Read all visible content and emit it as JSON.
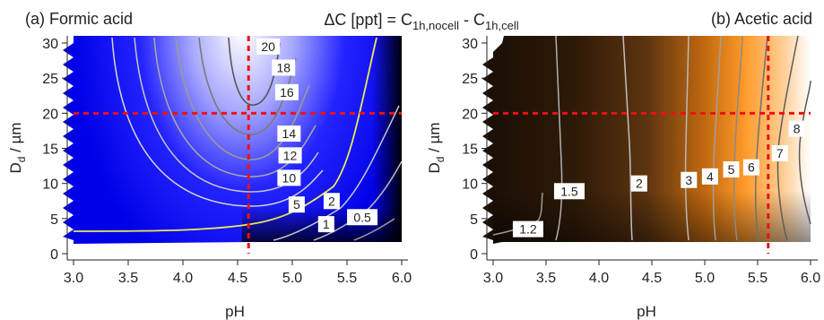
{
  "figure_title": "ΔC [ppt] = C1h,nocell - C1h,cell",
  "title_parts": {
    "pre": "ΔC [ppt] = C",
    "sub1": "1h,nocell",
    "mid": " - C",
    "sub2": "1h,cell"
  },
  "chart_data": [
    {
      "type": "contour",
      "title": "(a) Formic acid",
      "xlabel": "pH",
      "ylabel_main": "D",
      "ylabel_sub": "d",
      "ylabel_unit": " / µm",
      "xlim": [
        2.95,
        6.05
      ],
      "ylim": [
        -1,
        31
      ],
      "xticks": [
        3.0,
        3.5,
        4.0,
        4.5,
        5.0,
        5.5,
        6.0
      ],
      "xtick_labels": [
        "3.0",
        "3.5",
        "4.0",
        "4.5",
        "5.0",
        "5.5",
        "6.0"
      ],
      "yticks": [
        0,
        5,
        10,
        15,
        20,
        25,
        30
      ],
      "ytick_labels": [
        "0",
        "5",
        "10",
        "15",
        "20",
        "25",
        "30"
      ],
      "colormap": [
        "#000000",
        "#0000ff",
        "#ffffff"
      ],
      "reference_lines": {
        "pH": 4.6,
        "Dd": 20,
        "color": "#ee1111"
      },
      "contour_labels": [
        {
          "text": "20",
          "x": 4.78,
          "y": 29.5
        },
        {
          "text": "18",
          "x": 4.92,
          "y": 26.5
        },
        {
          "text": "16",
          "x": 4.95,
          "y": 23.0
        },
        {
          "text": "14",
          "x": 4.97,
          "y": 17.1
        },
        {
          "text": "12",
          "x": 4.98,
          "y": 14.0
        },
        {
          "text": "10",
          "x": 4.97,
          "y": 10.8
        },
        {
          "text": "5",
          "x": 5.04,
          "y": 7.0
        },
        {
          "text": "2",
          "x": 5.36,
          "y": 7.5
        },
        {
          "text": "1",
          "x": 5.31,
          "y": 4.2
        },
        {
          "text": "0.5",
          "x": 5.64,
          "y": 5.2
        }
      ]
    },
    {
      "type": "contour",
      "title": "(b) Acetic acid",
      "xlabel": "pH",
      "ylabel_main": "D",
      "ylabel_sub": "d",
      "ylabel_unit": " / µm",
      "xlim": [
        2.95,
        6.05
      ],
      "ylim": [
        -1,
        31
      ],
      "xticks": [
        3.0,
        3.5,
        4.0,
        4.5,
        5.0,
        5.5,
        6.0
      ],
      "xtick_labels": [
        "3.0",
        "3.5",
        "4.0",
        "4.5",
        "5.0",
        "5.5",
        "6.0"
      ],
      "yticks": [
        0,
        5,
        10,
        15,
        20,
        25,
        30
      ],
      "ytick_labels": [
        "0",
        "5",
        "10",
        "15",
        "20",
        "25",
        "30"
      ],
      "colormap": [
        "#000000",
        "#ff8c1a",
        "#ffffff"
      ],
      "reference_lines": {
        "pH": 5.6,
        "Dd": 20,
        "color": "#ee1111"
      },
      "contour_labels": [
        {
          "text": "1.2",
          "x": 3.33,
          "y": 3.5
        },
        {
          "text": "1.5",
          "x": 3.72,
          "y": 8.9
        },
        {
          "text": "2",
          "x": 4.38,
          "y": 10.0
        },
        {
          "text": "3",
          "x": 4.85,
          "y": 10.5
        },
        {
          "text": "4",
          "x": 5.05,
          "y": 11.0
        },
        {
          "text": "5",
          "x": 5.25,
          "y": 12.0
        },
        {
          "text": "6",
          "x": 5.44,
          "y": 12.3
        },
        {
          "text": "7",
          "x": 5.71,
          "y": 14.3
        },
        {
          "text": "8",
          "x": 5.87,
          "y": 17.8
        }
      ]
    }
  ]
}
